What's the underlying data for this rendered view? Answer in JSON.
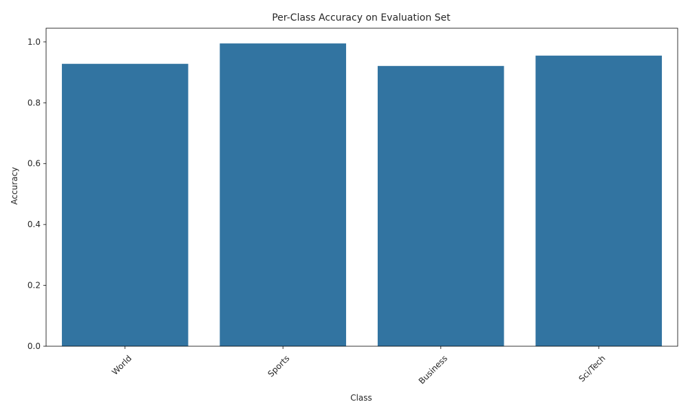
{
  "chart_data": {
    "type": "bar",
    "title": "Per-Class Accuracy on Evaluation Set",
    "xlabel": "Class",
    "ylabel": "Accuracy",
    "categories": [
      "World",
      "Sports",
      "Business",
      "Sci/Tech"
    ],
    "values": [
      0.928,
      0.995,
      0.921,
      0.955
    ],
    "ylim": [
      0,
      1.045
    ],
    "yticks": [
      0.0,
      0.2,
      0.4,
      0.6,
      0.8,
      1.0
    ],
    "ytick_labels": [
      "0.0",
      "0.2",
      "0.4",
      "0.6",
      "0.8",
      "1.0"
    ],
    "xtick_rotation": 45,
    "grid": false,
    "bar_color": "#3274a1"
  }
}
